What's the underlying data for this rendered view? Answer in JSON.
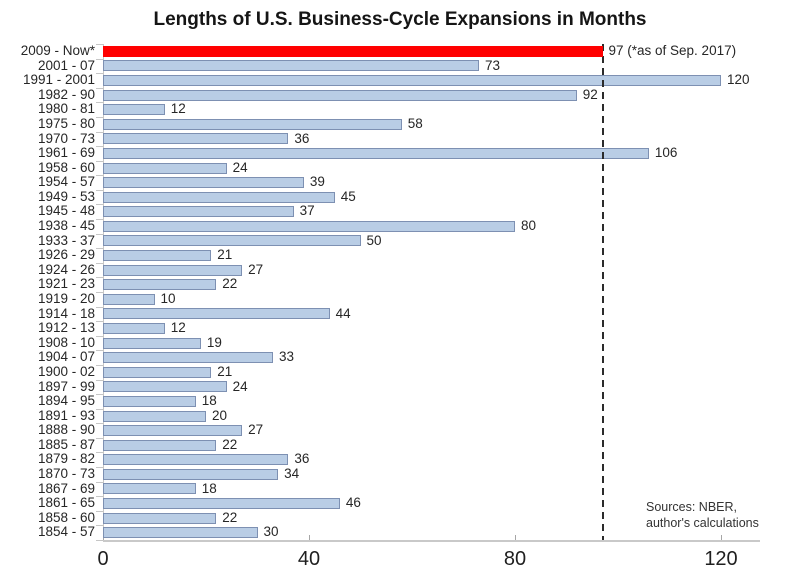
{
  "title": "Lengths of U.S. Business-Cycle Expansions in Months",
  "annotation": "97 (*as of Sep. 2017)",
  "sources": {
    "line1": "Sources: NBER,",
    "line2": "author's calculations"
  },
  "colors": {
    "bar_fill": "#b9cde5",
    "bar_border": "#7d90b2",
    "highlight_fill": "#ff0000",
    "reference_line": "#2b2b2b",
    "axis_line": "#c9c9c9"
  },
  "chart_data": {
    "type": "bar",
    "orientation": "horizontal",
    "title": "Lengths of U.S. Business-Cycle Expansions in Months",
    "categories": [
      "2009 - Now*",
      "2001 - 07",
      "1991 - 2001",
      "1982 - 90",
      "1980 - 81",
      "1975 - 80",
      "1970 - 73",
      "1961 - 69",
      "1958 - 60",
      "1954 - 57",
      "1949 - 53",
      "1945 - 48",
      "1938 - 45",
      "1933 - 37",
      "1926 - 29",
      "1924 - 26",
      "1921 - 23",
      "1919 - 20",
      "1914 - 18",
      "1912 - 13",
      "1908 - 10",
      "1904 - 07",
      "1900 - 02",
      "1897 - 99",
      "1894 - 95",
      "1891 - 93",
      "1888 - 90",
      "1885 - 87",
      "1879 - 82",
      "1870 - 73",
      "1867 - 69",
      "1861 - 65",
      "1858 - 60",
      "1854 - 57"
    ],
    "values": [
      97,
      73,
      120,
      92,
      12,
      58,
      36,
      106,
      24,
      39,
      45,
      37,
      80,
      50,
      21,
      27,
      22,
      10,
      44,
      12,
      19,
      33,
      21,
      24,
      18,
      20,
      27,
      22,
      36,
      34,
      18,
      46,
      22,
      30
    ],
    "highlight_index": 0,
    "data_labels": true,
    "reference_line": {
      "value": 97,
      "style": "dashed"
    },
    "annotation_for_highlight": "97 (*as of Sep. 2017)",
    "xlabel": "",
    "ylabel": "",
    "xticks": [
      0,
      40,
      80,
      120
    ],
    "xlim": [
      0,
      127
    ],
    "grid": false,
    "legend": "none"
  }
}
